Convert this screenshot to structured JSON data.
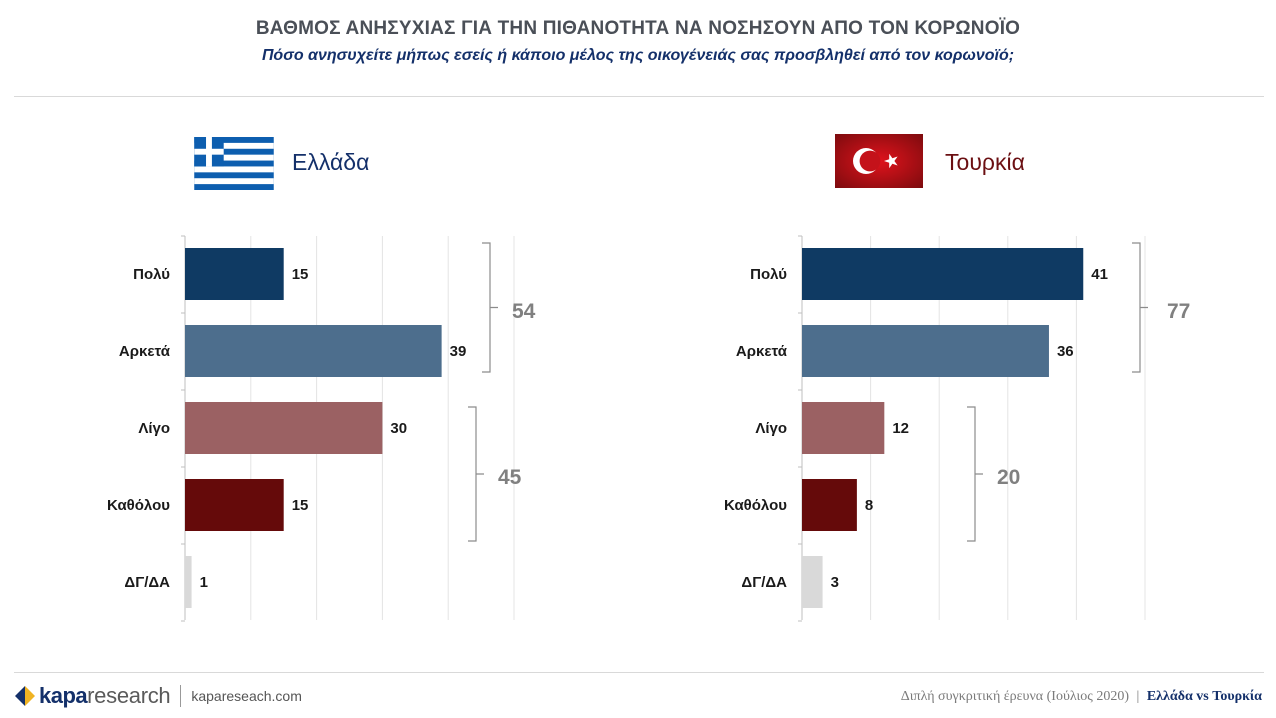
{
  "header": {
    "title": "ΒΑΘΜΟΣ ΑΝΗΣΥΧΙΑΣ ΓΙΑ ΤΗΝ ΠΙΘΑΝΟΤΗΤΑ ΝΑ ΝΟΣΗΣΟΥΝ ΑΠΟ ΤΟΝ ΚΟΡΩΝΟΪΟ",
    "subtitle": "Πόσο ανησυχείτε μήπως εσείς ή κάποιο μέλος της οικογένειάς σας προσβληθεί από τον κορωνοϊό;"
  },
  "colors": {
    "polu": "#0f3a63",
    "arketa": "#4d6e8d",
    "ligo": "#9b6163",
    "katholou": "#650a0a",
    "dk": "#d9d9d9",
    "group_total": "#808080",
    "greece_label": "#14306a",
    "turkey_label": "#6b0f12"
  },
  "chart_data": [
    {
      "type": "bar",
      "orientation": "horizontal",
      "title": "Ελλάδα",
      "flag": "greece-flag",
      "categories": [
        "Πολύ",
        "Αρκετά",
        "Λίγο",
        "Καθόλου",
        "ΔΓ/ΔΑ"
      ],
      "values": [
        15,
        39,
        30,
        15,
        1
      ],
      "xlim": [
        0,
        50
      ],
      "grid": true,
      "groups": [
        {
          "label": "54",
          "categories": [
            "Πολύ",
            "Αρκετά"
          ]
        },
        {
          "label": "45",
          "categories": [
            "Λίγο",
            "Καθόλου"
          ]
        }
      ]
    },
    {
      "type": "bar",
      "orientation": "horizontal",
      "title": "Τουρκία",
      "flag": "turkey-flag",
      "categories": [
        "Πολύ",
        "Αρκετά",
        "Λίγο",
        "Καθόλου",
        "ΔΓ/ΔΑ"
      ],
      "values": [
        41,
        36,
        12,
        8,
        3
      ],
      "xlim": [
        0,
        50
      ],
      "grid": true,
      "groups": [
        {
          "label": "77",
          "categories": [
            "Πολύ",
            "Αρκετά"
          ]
        },
        {
          "label": "20",
          "categories": [
            "Λίγο",
            "Καθόλου"
          ]
        }
      ]
    }
  ],
  "footer": {
    "brand_bold": "kapa",
    "brand_light": "research",
    "website": "kapareseach.com",
    "note": "Διπλή συγκριτική έρευνα (Ιούλιος 2020)",
    "separator": "|",
    "highlight": "Ελλάδα vs Τουρκία"
  }
}
